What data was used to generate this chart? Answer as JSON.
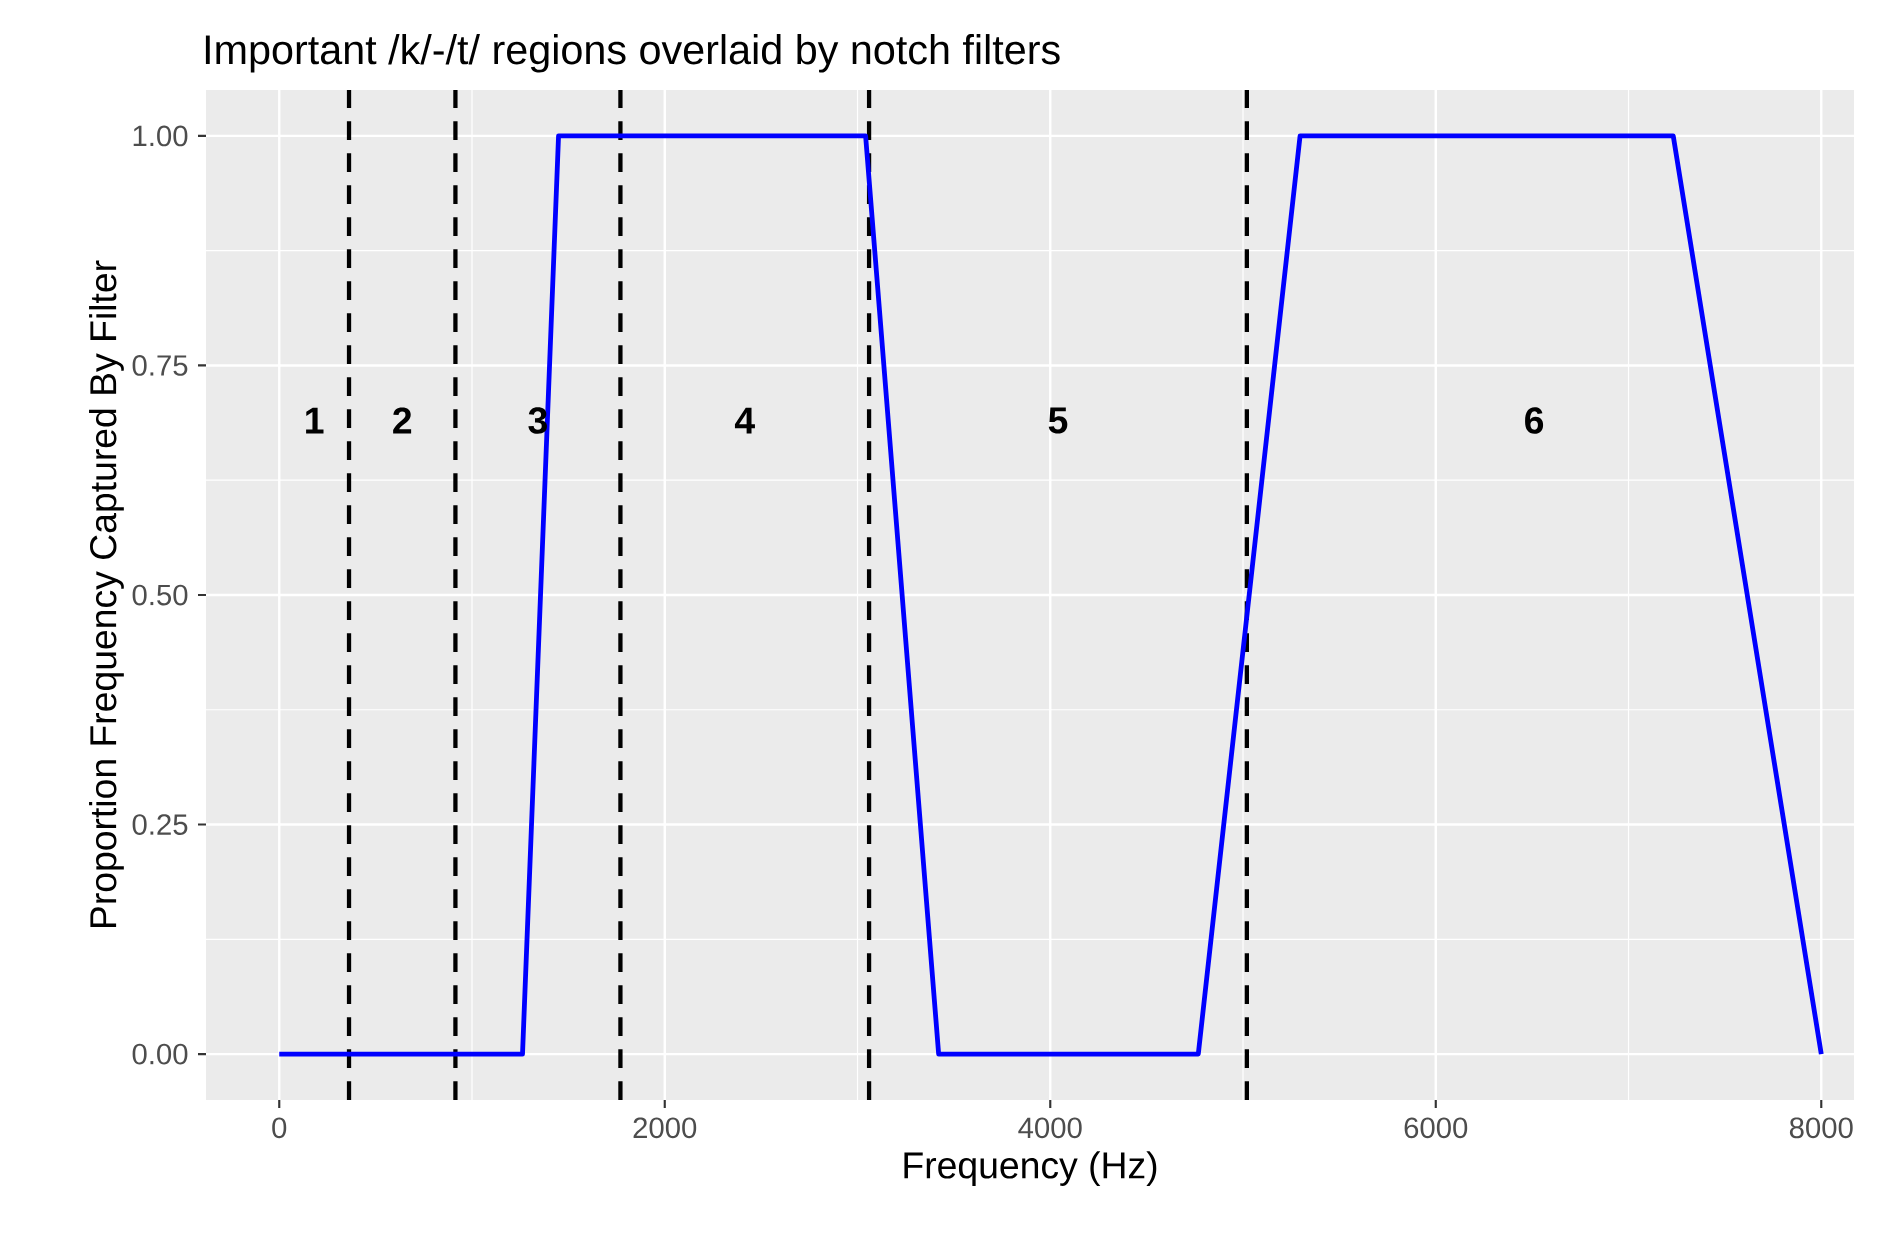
{
  "chart_data": {
    "type": "line",
    "title": "Important /k/-/t/ regions overlaid by notch filters",
    "xlabel": "Frequency (Hz)",
    "ylabel": "Proportion Frequency Captured By Filter",
    "x": [
      0,
      1262,
      1449,
      3042,
      3421,
      4768,
      5296,
      7232,
      8000
    ],
    "series": [
      {
        "color": "#0000ff",
        "values": [
          0,
          0,
          1,
          1,
          0,
          0,
          1,
          1,
          0
        ]
      }
    ],
    "marker": "none",
    "line_style": "solid",
    "grid": true,
    "xlim": [
      -380,
      8170
    ],
    "ylim": [
      -0.05,
      1.05
    ],
    "xticks": [
      0,
      2000,
      4000,
      6000,
      8000
    ],
    "yticks": [
      {
        "value": 0,
        "label": "0.00"
      },
      {
        "value": 0.25,
        "label": "0.25"
      },
      {
        "value": 0.5,
        "label": "0.50"
      },
      {
        "value": 0.75,
        "label": "0.75"
      },
      {
        "value": 1,
        "label": "1.00"
      }
    ],
    "ref_lines": [
      {
        "axis": "x",
        "value": 362,
        "color": "#000000",
        "line_style": "dashed"
      },
      {
        "axis": "x",
        "value": 914,
        "color": "#000000",
        "line_style": "dashed"
      },
      {
        "axis": "x",
        "value": 1770,
        "color": "#000000",
        "line_style": "dashed"
      },
      {
        "axis": "x",
        "value": 3060,
        "color": "#000000",
        "line_style": "dashed"
      },
      {
        "axis": "x",
        "value": 5020,
        "color": "#000000",
        "line_style": "dashed"
      }
    ],
    "annotations": [
      "1",
      "2",
      "3",
      "4",
      "5",
      "6"
    ]
  }
}
